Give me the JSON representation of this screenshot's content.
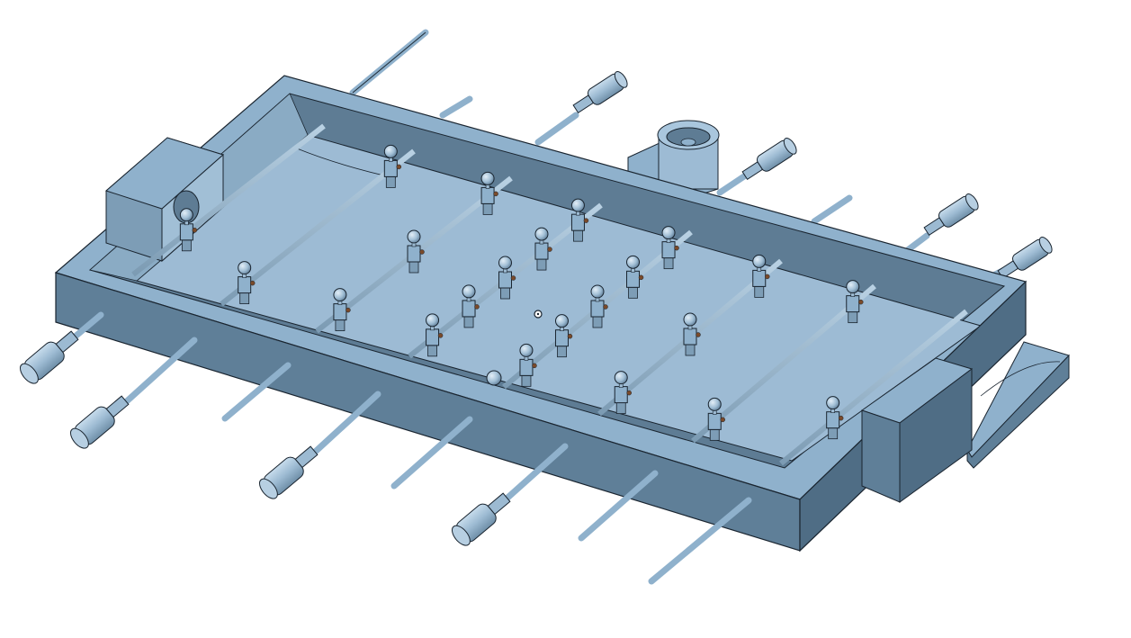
{
  "scene": {
    "subject": "foosball-table-cad-model",
    "view": "isometric",
    "colors": {
      "background": "#ffffff",
      "body": "#8fb1cc",
      "body_light": "#a9c6dd",
      "body_dark": "#5f7f98",
      "floor": "#9dbbd4",
      "inner_wall": "#5e7c94",
      "outline": "#1a2530",
      "accent_spring": "#7a4a2a"
    },
    "rods": {
      "count": 8,
      "handles_near_side": 4,
      "handles_far_side": 4
    },
    "figures_per_rod": [
      1,
      2,
      3,
      5,
      5,
      3,
      2,
      1
    ]
  }
}
